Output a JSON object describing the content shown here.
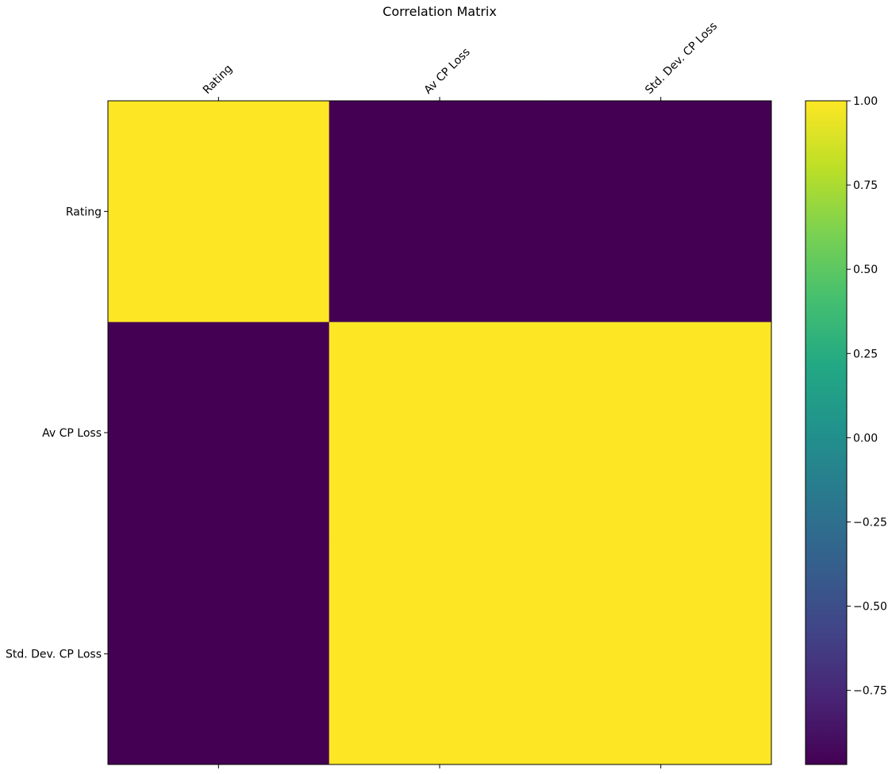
{
  "chart_data": {
    "type": "heatmap",
    "title": "Correlation Matrix",
    "xlabel": "",
    "ylabel": "",
    "x_labels": [
      "Rating",
      "Av CP Loss",
      "Std. Dev. CP Loss"
    ],
    "y_labels": [
      "Rating",
      "Av CP Loss",
      "Std. Dev. CP Loss"
    ],
    "values": [
      [
        1.0,
        -0.97,
        -0.97
      ],
      [
        -0.97,
        1.0,
        1.0
      ],
      [
        -0.97,
        1.0,
        1.0
      ]
    ],
    "colormap": "viridis",
    "colorbar": {
      "vmin": -0.97,
      "vmax": 1.0,
      "ticks": [
        1.0,
        0.75,
        0.5,
        0.25,
        0.0,
        -0.25,
        -0.5,
        -0.75
      ],
      "tick_labels": [
        "1.00",
        "0.75",
        "0.50",
        "0.25",
        "0.00",
        "−0.25",
        "−0.50",
        "−0.75"
      ]
    },
    "grid": false,
    "x_tick_position": "top"
  }
}
